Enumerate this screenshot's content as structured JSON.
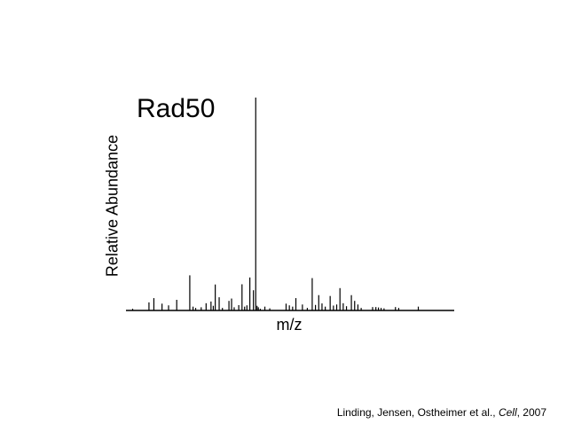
{
  "chart_data": {
    "type": "bar",
    "title": "Rad50",
    "xlabel": "m/z",
    "ylabel": "Relative Abundance",
    "xlim": [
      0,
      100
    ],
    "ylim": [
      0,
      100
    ],
    "grid": false,
    "legend": "none",
    "series": [
      {
        "x": [
          1.5,
          6.5,
          8.0,
          10.5,
          12.5,
          15.0,
          19.0,
          20.0,
          20.8,
          22.5,
          24.0,
          25.5,
          26.2,
          26.8,
          28.0,
          29.0,
          31.0,
          31.8,
          32.6,
          34.0,
          35.0,
          35.8,
          36.5,
          37.4,
          38.5,
          39.2,
          39.6,
          40.0,
          40.6,
          42.0,
          43.5,
          48.5,
          49.5,
          50.5,
          51.5,
          53.5,
          55.0,
          56.5,
          57.5,
          58.5,
          59.5,
          60.5,
          62.0,
          63.0,
          64.0,
          65.0,
          66.0,
          67.0,
          68.5,
          69.5,
          70.5,
          71.5,
          75.0,
          76.0,
          76.8,
          77.6,
          78.5,
          82.0,
          83.0,
          89.0
        ],
        "values": [
          0.8,
          3.8,
          5.8,
          3.2,
          2.4,
          5.0,
          16.5,
          1.8,
          1.2,
          1.5,
          3.4,
          4.2,
          2.2,
          12.2,
          6.2,
          1.2,
          4.5,
          5.6,
          1.5,
          2.5,
          12.3,
          1.8,
          2.4,
          15.5,
          9.5,
          100.0,
          2.2,
          1.5,
          0.8,
          1.8,
          1.0,
          3.2,
          2.4,
          1.8,
          5.8,
          2.8,
          1.2,
          15.2,
          2.6,
          7.2,
          3.3,
          1.8,
          6.8,
          2.3,
          2.8,
          10.5,
          3.4,
          2.0,
          7.2,
          4.5,
          2.8,
          1.2,
          1.6,
          1.6,
          1.4,
          1.2,
          1.0,
          1.6,
          1.2,
          1.8
        ]
      }
    ]
  },
  "citation": {
    "authors": "Linding, Jensen, Ostheimer et al.,",
    "journal": "Cell",
    "year": ", 2007"
  }
}
